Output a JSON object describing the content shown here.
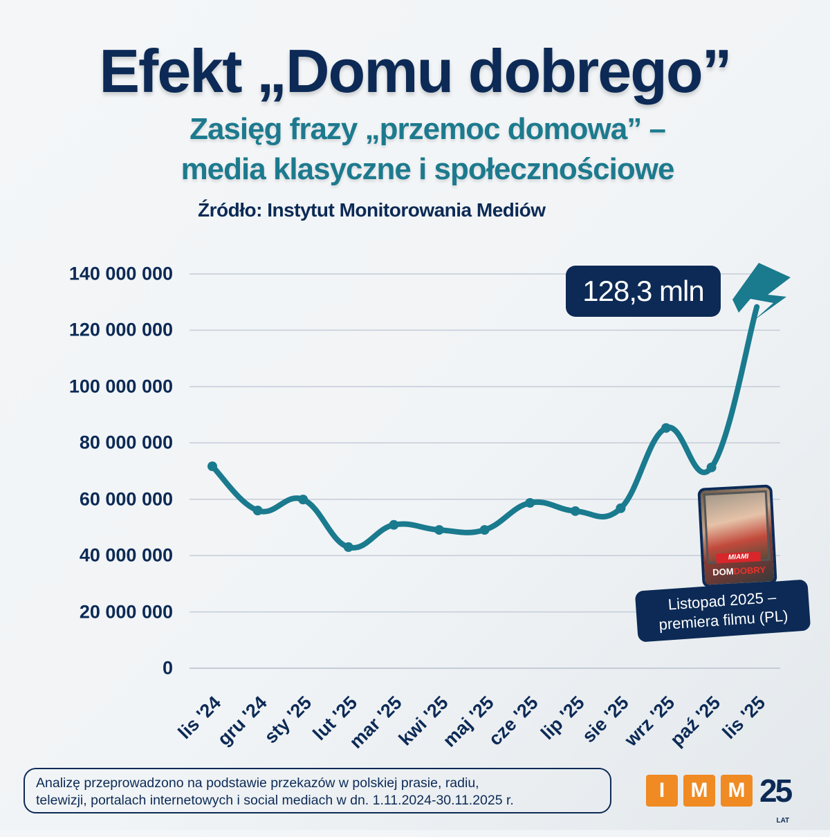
{
  "header": {
    "title": "Efekt „Domu dobrego”",
    "subtitle_line1": "Zasięg frazy „przemoc domowa” –",
    "subtitle_line2": "media klasyczne i społecznościowe",
    "source": "Źródło: Instytut Monitorowania Mediów"
  },
  "colors": {
    "title": "#0c2a55",
    "subtitle": "#1d7a8e",
    "line": "#1a7a8e",
    "gridline": "#c5ccd8",
    "logo_orange": "#f08a23"
  },
  "y_axis": {
    "ticks": [
      "140 000 000",
      "120 000 000",
      "100 000 000",
      "80 000 000",
      "60 000 000",
      "40 000 000",
      "20 000 000",
      "0"
    ]
  },
  "x_axis": {
    "ticks": [
      "lis '24",
      "gru '24",
      "sty '25",
      "lut '25",
      "mar '25",
      "kwi '25",
      "maj '25",
      "cze '25",
      "lip '25",
      "sie '25",
      "wrz '25",
      "paź '25",
      "lis '25"
    ]
  },
  "callout": {
    "value_label": "128,3 mln",
    "icon": "lightning-bolt-icon"
  },
  "poster": {
    "badge": "MIAMI",
    "title_part1": "DOM",
    "title_part2": "DOBRY",
    "caption_line1": "Listopad 2025 –",
    "caption_line2": "premiera filmu (PL)"
  },
  "footnote": {
    "line1": "Analizę przeprowadzono na podstawie przekazów w polskiej prasie, radiu,",
    "line2": "telewizji, portalach internetowych i social mediach w dn. 1.11.2024-30.11.2025 r."
  },
  "logo": {
    "letters": [
      "I",
      "M",
      "M"
    ],
    "anniversary": "25",
    "anniversary_sub": "LAT"
  },
  "chart_data": {
    "type": "line",
    "title": "Efekt „Domu dobrego” – Zasięg frazy „przemoc domowa” – media klasyczne i społecznościowe",
    "xlabel": "",
    "ylabel": "",
    "categories": [
      "lis '24",
      "gru '24",
      "sty '25",
      "lut '25",
      "mar '25",
      "kwi '25",
      "maj '25",
      "cze '25",
      "lip '25",
      "sie '25",
      "wrz '25",
      "paź '25",
      "lis '25"
    ],
    "series": [
      {
        "name": "Zasięg frazy „przemoc domowa”",
        "values": [
          71700000,
          56000000,
          59900000,
          43000000,
          50900000,
          49100000,
          49100000,
          58700000,
          55800000,
          56800000,
          85300000,
          71300000,
          128300000
        ]
      }
    ],
    "ylim": [
      0,
      140000000
    ],
    "yticks": [
      0,
      20000000,
      40000000,
      60000000,
      80000000,
      100000000,
      120000000,
      140000000
    ],
    "grid": true,
    "legend": "none",
    "annotations": [
      {
        "text": "128,3 mln",
        "target": "lis '25"
      },
      {
        "text": "Listopad 2025 – premiera filmu (PL)",
        "target": "lis '25"
      }
    ]
  }
}
